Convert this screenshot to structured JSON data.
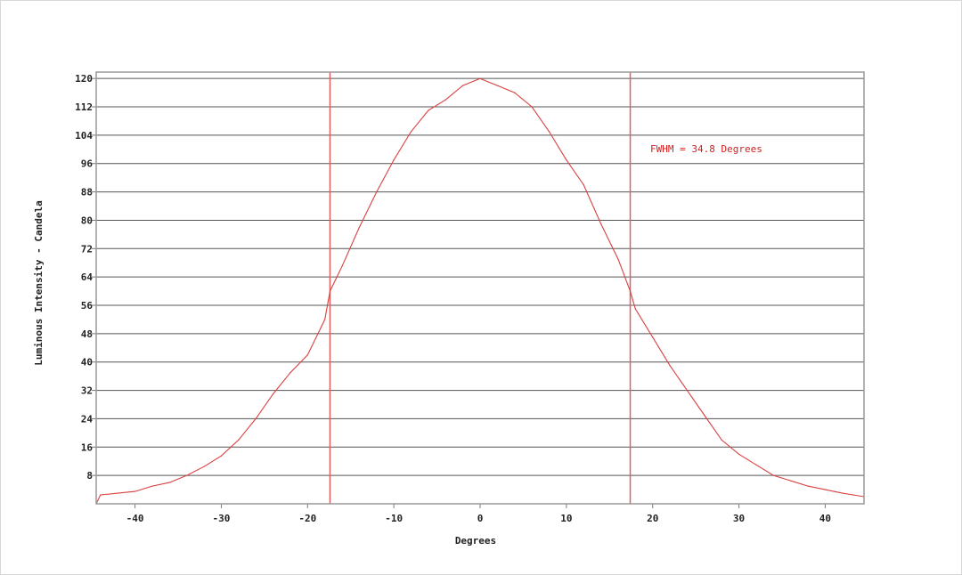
{
  "chart_data": {
    "type": "line",
    "title": "",
    "xlabel": "Degrees",
    "ylabel": "Luminous Intensity - Candela",
    "xlim": [
      -44.5,
      44.5
    ],
    "ylim": [
      0,
      121.8
    ],
    "xticks": [
      -40,
      -30,
      -20,
      -10,
      0,
      10,
      20,
      30,
      40
    ],
    "yticks": [
      8,
      16,
      24,
      32,
      40,
      48,
      56,
      64,
      72,
      80,
      88,
      96,
      104,
      112,
      120
    ],
    "grid": "horizontal",
    "series": [
      {
        "color": "#d94040",
        "x": [
          -44.5,
          -44,
          -42,
          -40,
          -38,
          -36,
          -34,
          -32,
          -30,
          -28,
          -26,
          -24,
          -22,
          -20,
          -18,
          -17.4,
          -16,
          -14,
          -12,
          -10,
          -8,
          -6,
          -4,
          -2,
          0,
          2,
          4,
          6,
          8,
          10,
          12,
          14,
          16,
          17.4,
          18,
          20,
          22,
          24,
          26,
          28,
          30,
          32,
          34,
          36,
          38,
          40,
          42,
          44.5
        ],
        "y": [
          0,
          2.5,
          3,
          3.5,
          5,
          6,
          8,
          10.5,
          13.5,
          18,
          24,
          31,
          37,
          42,
          52,
          60,
          67,
          78,
          88,
          97,
          105,
          111,
          114,
          118,
          120,
          118,
          116,
          112,
          105,
          97,
          90,
          79,
          69,
          60,
          55,
          47,
          39,
          32,
          25,
          18,
          14,
          11,
          8,
          6.5,
          5,
          4,
          3,
          2
        ]
      }
    ],
    "markers": [
      {
        "x": -17.4,
        "color": "#e06060"
      },
      {
        "x": 17.4,
        "color": "#e06060"
      }
    ],
    "annotation": "FWHM = 34.8 Degrees"
  }
}
